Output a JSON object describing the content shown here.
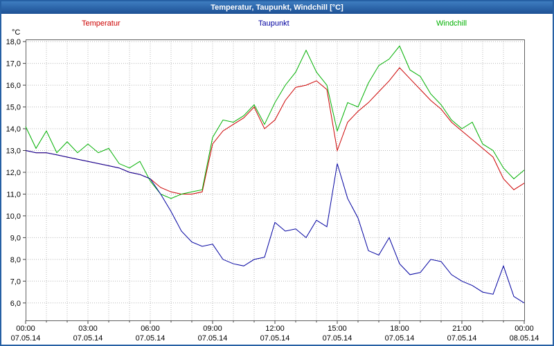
{
  "window": {
    "title": "Temperatur, Taupunkt, Windchill [°C]"
  },
  "legend": [
    {
      "label": "Temperatur",
      "color": "#cc0000"
    },
    {
      "label": "Taupunkt",
      "color": "#0000a0"
    },
    {
      "label": "Windchill",
      "color": "#00b000"
    }
  ],
  "y_axis_unit": "°C",
  "colors": {
    "titlebar": "#1d5094",
    "frame_border": "#2660a4",
    "gridline": "#b8b8b8"
  },
  "chart_data": {
    "type": "line",
    "title": "Temperatur, Taupunkt, Windchill [°C]",
    "xlabel": "",
    "ylabel": "°C",
    "ylim": [
      5.2,
      18.1
    ],
    "x_hours_max": 24,
    "x_step_hours": 0.5,
    "grid": "dotted",
    "legend_position": "top",
    "yticks": [
      {
        "value": 6,
        "label": "6,0"
      },
      {
        "value": 7,
        "label": "7,0"
      },
      {
        "value": 8,
        "label": "8,0"
      },
      {
        "value": 9,
        "label": "9,0"
      },
      {
        "value": 10,
        "label": "10,0"
      },
      {
        "value": 11,
        "label": "11,0"
      },
      {
        "value": 12,
        "label": "12,0"
      },
      {
        "value": 13,
        "label": "13,0"
      },
      {
        "value": 14,
        "label": "14,0"
      },
      {
        "value": 15,
        "label": "15,0"
      },
      {
        "value": 16,
        "label": "16,0"
      },
      {
        "value": 17,
        "label": "17,0"
      },
      {
        "value": 18,
        "label": "18,0"
      }
    ],
    "xticks": [
      {
        "hour": 0,
        "time": "00:00",
        "date": "07.05.14"
      },
      {
        "hour": 3,
        "time": "03:00",
        "date": "07.05.14"
      },
      {
        "hour": 6,
        "time": "06:00",
        "date": "07.05.14"
      },
      {
        "hour": 9,
        "time": "09:00",
        "date": "07.05.14"
      },
      {
        "hour": 12,
        "time": "12:00",
        "date": "07.05.14"
      },
      {
        "hour": 15,
        "time": "15:00",
        "date": "07.05.14"
      },
      {
        "hour": 18,
        "time": "18:00",
        "date": "07.05.14"
      },
      {
        "hour": 21,
        "time": "21:00",
        "date": "07.05.14"
      },
      {
        "hour": 24,
        "time": "00:00",
        "date": "08.05.14"
      }
    ],
    "series": [
      {
        "name": "Temperatur",
        "color": "#cc0000",
        "values": [
          13.0,
          12.9,
          12.9,
          12.8,
          12.7,
          12.6,
          12.5,
          12.4,
          12.3,
          12.2,
          12.0,
          11.9,
          11.7,
          11.3,
          11.1,
          11.0,
          11.0,
          11.1,
          13.3,
          13.9,
          14.2,
          14.5,
          15.0,
          14.0,
          14.4,
          15.3,
          15.9,
          16.0,
          16.2,
          15.8,
          13.0,
          14.3,
          14.8,
          15.2,
          15.7,
          16.2,
          16.8,
          16.3,
          15.8,
          15.3,
          14.9,
          14.3,
          13.9,
          13.5,
          13.1,
          12.7,
          11.7,
          11.2,
          11.5
        ]
      },
      {
        "name": "Taupunkt",
        "color": "#0000a0",
        "values": [
          13.0,
          12.9,
          12.9,
          12.8,
          12.7,
          12.6,
          12.5,
          12.4,
          12.3,
          12.2,
          12.0,
          11.9,
          11.7,
          11.0,
          10.2,
          9.3,
          8.8,
          8.6,
          8.7,
          8.0,
          7.8,
          7.7,
          8.0,
          8.1,
          9.7,
          9.3,
          9.4,
          9.0,
          9.8,
          9.5,
          12.4,
          10.8,
          9.9,
          8.4,
          8.2,
          9.0,
          7.8,
          7.3,
          7.4,
          8.0,
          7.9,
          7.3,
          7.0,
          6.8,
          6.5,
          6.4,
          7.7,
          6.3,
          6.0
        ]
      },
      {
        "name": "Windchill",
        "color": "#00b000",
        "values": [
          14.1,
          13.1,
          13.9,
          12.9,
          13.4,
          12.9,
          13.3,
          12.9,
          13.1,
          12.4,
          12.2,
          12.5,
          11.6,
          11.0,
          10.8,
          11.0,
          11.1,
          11.2,
          13.6,
          14.4,
          14.3,
          14.6,
          15.1,
          14.2,
          15.2,
          16.0,
          16.6,
          17.6,
          16.6,
          16.0,
          13.9,
          15.2,
          15.0,
          16.1,
          16.9,
          17.2,
          17.8,
          16.7,
          16.4,
          15.6,
          15.1,
          14.4,
          14.0,
          14.3,
          13.3,
          13.0,
          12.2,
          11.7,
          12.1
        ]
      }
    ]
  }
}
